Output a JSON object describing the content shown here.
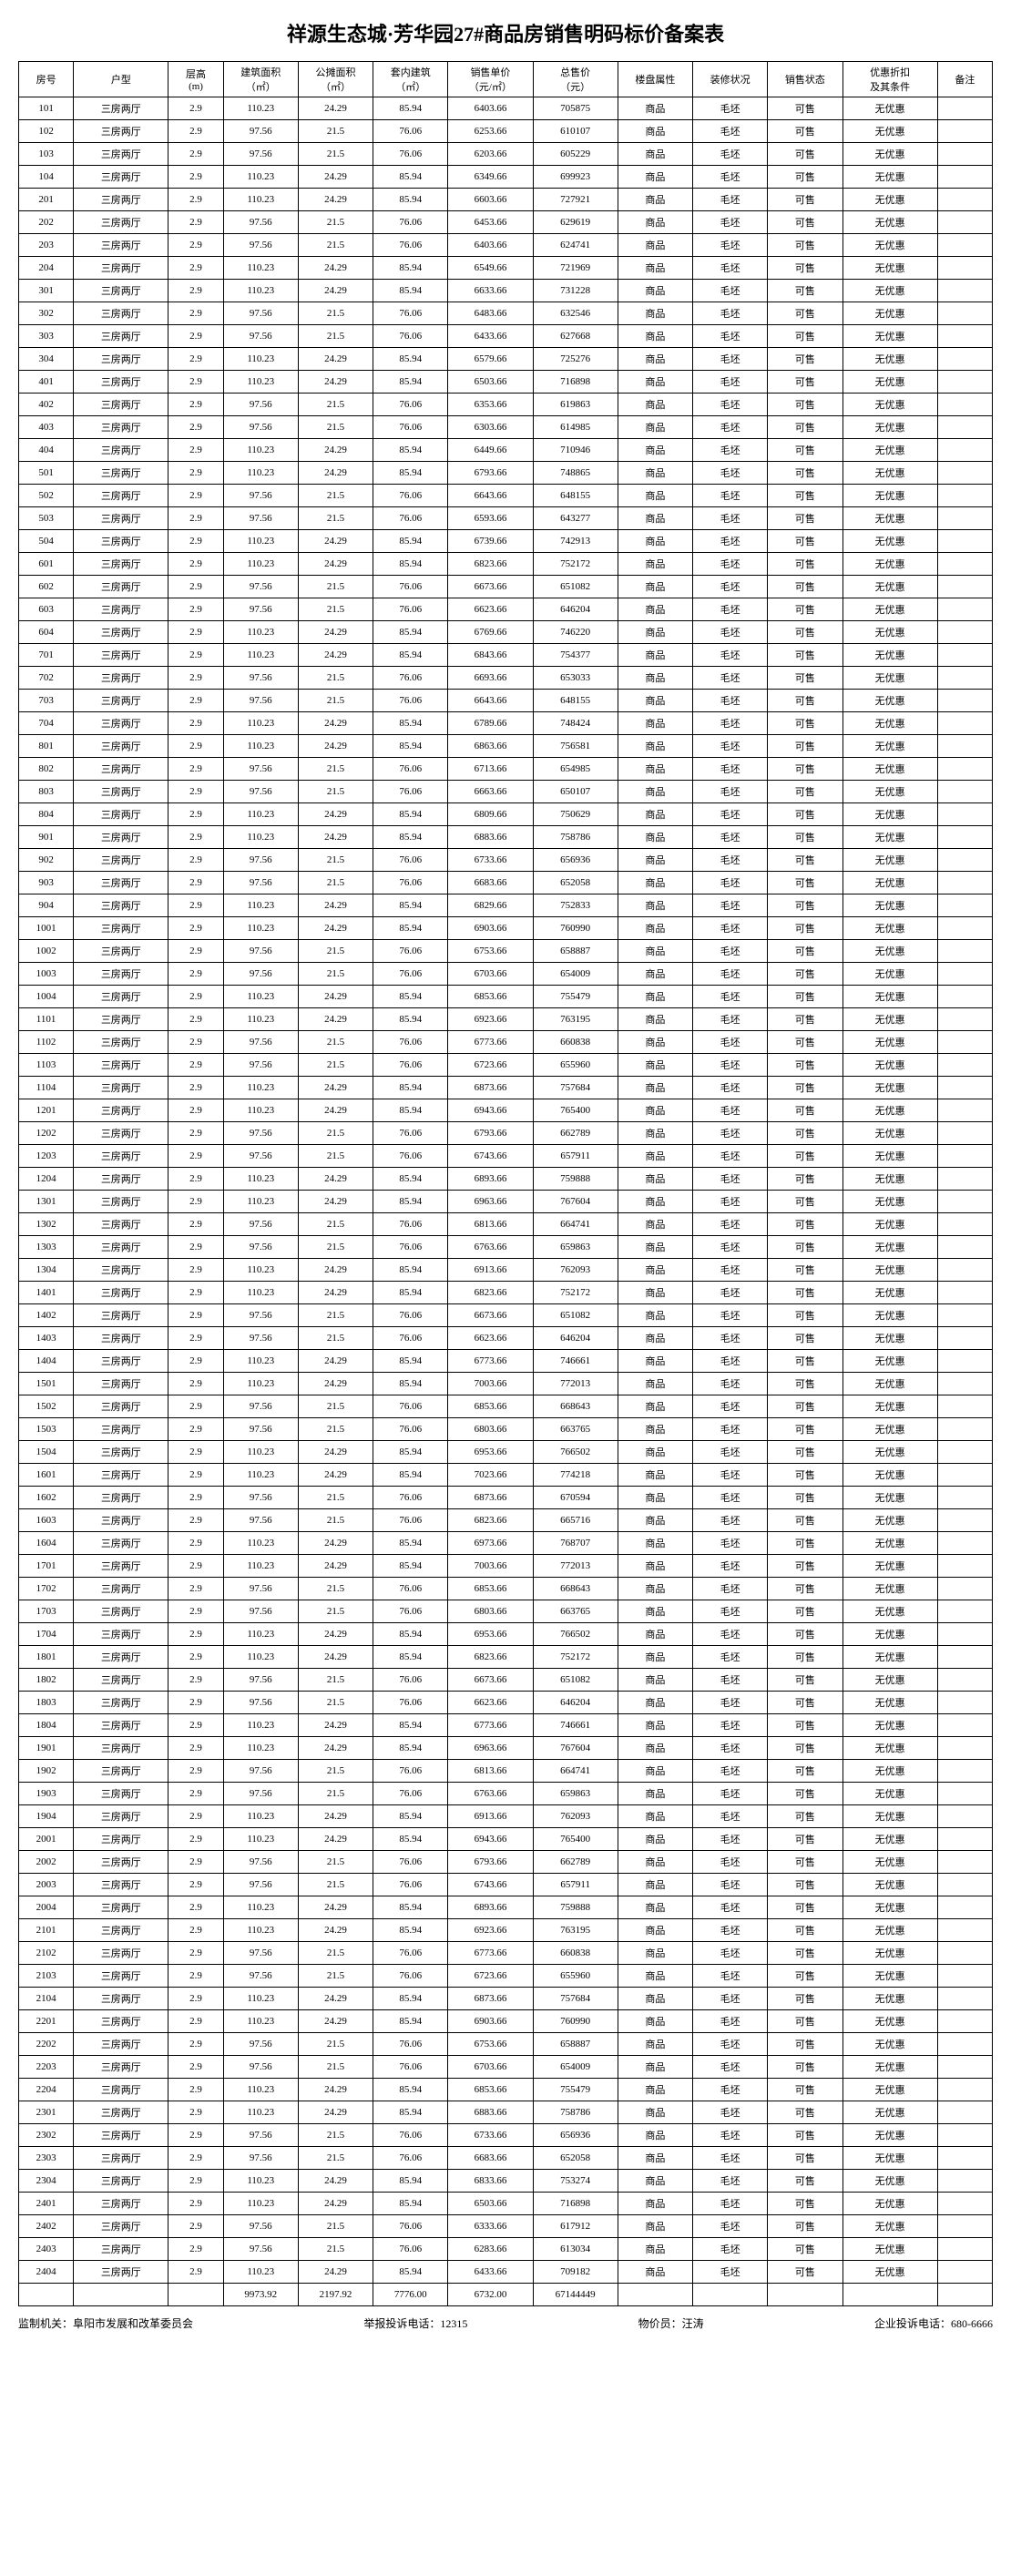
{
  "title": "祥源生态城·芳华园27#商品房销售明码标价备案表",
  "headers": {
    "room_no": "房号",
    "unit_type": "户型",
    "floor_height": "层高\n(m)",
    "build_area": "建筑面积\n（㎡）",
    "shared_area": "公摊面积\n（㎡）",
    "inner_area": "套内建筑\n（㎡）",
    "unit_price": "销售单价\n（元/㎡）",
    "total_price": "总售价\n（元）",
    "prop_attr": "楼盘属性",
    "decoration": "装修状况",
    "sale_status": "销售状态",
    "discount": "优惠折扣\n及其条件",
    "remark": "备注"
  },
  "common": {
    "unit_type": "三房两厅",
    "floor_height": "2.9",
    "build_area_a": "110.23",
    "build_area_b": "97.56",
    "shared_area_a": "24.29",
    "shared_area_b": "21.5",
    "inner_area_a": "85.94",
    "inner_area_b": "76.06",
    "prop_attr": "商品",
    "decoration": "毛坯",
    "sale_status": "可售",
    "discount": "无优惠"
  },
  "rows": [
    {
      "no": "101",
      "t": "a",
      "up": "6403.66",
      "tp": "705875"
    },
    {
      "no": "102",
      "t": "b",
      "up": "6253.66",
      "tp": "610107"
    },
    {
      "no": "103",
      "t": "b",
      "up": "6203.66",
      "tp": "605229"
    },
    {
      "no": "104",
      "t": "a",
      "up": "6349.66",
      "tp": "699923"
    },
    {
      "no": "201",
      "t": "a",
      "up": "6603.66",
      "tp": "727921"
    },
    {
      "no": "202",
      "t": "b",
      "up": "6453.66",
      "tp": "629619"
    },
    {
      "no": "203",
      "t": "b",
      "up": "6403.66",
      "tp": "624741"
    },
    {
      "no": "204",
      "t": "a",
      "up": "6549.66",
      "tp": "721969"
    },
    {
      "no": "301",
      "t": "a",
      "up": "6633.66",
      "tp": "731228"
    },
    {
      "no": "302",
      "t": "b",
      "up": "6483.66",
      "tp": "632546"
    },
    {
      "no": "303",
      "t": "b",
      "up": "6433.66",
      "tp": "627668"
    },
    {
      "no": "304",
      "t": "a",
      "up": "6579.66",
      "tp": "725276"
    },
    {
      "no": "401",
      "t": "a",
      "up": "6503.66",
      "tp": "716898"
    },
    {
      "no": "402",
      "t": "b",
      "up": "6353.66",
      "tp": "619863"
    },
    {
      "no": "403",
      "t": "b",
      "up": "6303.66",
      "tp": "614985"
    },
    {
      "no": "404",
      "t": "a",
      "up": "6449.66",
      "tp": "710946"
    },
    {
      "no": "501",
      "t": "a",
      "up": "6793.66",
      "tp": "748865"
    },
    {
      "no": "502",
      "t": "b",
      "up": "6643.66",
      "tp": "648155"
    },
    {
      "no": "503",
      "t": "b",
      "up": "6593.66",
      "tp": "643277"
    },
    {
      "no": "504",
      "t": "a",
      "up": "6739.66",
      "tp": "742913"
    },
    {
      "no": "601",
      "t": "a",
      "up": "6823.66",
      "tp": "752172"
    },
    {
      "no": "602",
      "t": "b",
      "up": "6673.66",
      "tp": "651082"
    },
    {
      "no": "603",
      "t": "b",
      "up": "6623.66",
      "tp": "646204"
    },
    {
      "no": "604",
      "t": "a",
      "up": "6769.66",
      "tp": "746220"
    },
    {
      "no": "701",
      "t": "a",
      "up": "6843.66",
      "tp": "754377"
    },
    {
      "no": "702",
      "t": "b",
      "up": "6693.66",
      "tp": "653033"
    },
    {
      "no": "703",
      "t": "b",
      "up": "6643.66",
      "tp": "648155"
    },
    {
      "no": "704",
      "t": "a",
      "up": "6789.66",
      "tp": "748424"
    },
    {
      "no": "801",
      "t": "a",
      "up": "6863.66",
      "tp": "756581"
    },
    {
      "no": "802",
      "t": "b",
      "up": "6713.66",
      "tp": "654985"
    },
    {
      "no": "803",
      "t": "b",
      "up": "6663.66",
      "tp": "650107"
    },
    {
      "no": "804",
      "t": "a",
      "up": "6809.66",
      "tp": "750629"
    },
    {
      "no": "901",
      "t": "a",
      "up": "6883.66",
      "tp": "758786"
    },
    {
      "no": "902",
      "t": "b",
      "up": "6733.66",
      "tp": "656936"
    },
    {
      "no": "903",
      "t": "b",
      "up": "6683.66",
      "tp": "652058"
    },
    {
      "no": "904",
      "t": "a",
      "up": "6829.66",
      "tp": "752833"
    },
    {
      "no": "1001",
      "t": "a",
      "up": "6903.66",
      "tp": "760990"
    },
    {
      "no": "1002",
      "t": "b",
      "up": "6753.66",
      "tp": "658887"
    },
    {
      "no": "1003",
      "t": "b",
      "up": "6703.66",
      "tp": "654009"
    },
    {
      "no": "1004",
      "t": "a",
      "up": "6853.66",
      "tp": "755479"
    },
    {
      "no": "1101",
      "t": "a",
      "up": "6923.66",
      "tp": "763195"
    },
    {
      "no": "1102",
      "t": "b",
      "up": "6773.66",
      "tp": "660838"
    },
    {
      "no": "1103",
      "t": "b",
      "up": "6723.66",
      "tp": "655960"
    },
    {
      "no": "1104",
      "t": "a",
      "up": "6873.66",
      "tp": "757684"
    },
    {
      "no": "1201",
      "t": "a",
      "up": "6943.66",
      "tp": "765400"
    },
    {
      "no": "1202",
      "t": "b",
      "up": "6793.66",
      "tp": "662789"
    },
    {
      "no": "1203",
      "t": "b",
      "up": "6743.66",
      "tp": "657911"
    },
    {
      "no": "1204",
      "t": "a",
      "up": "6893.66",
      "tp": "759888"
    },
    {
      "no": "1301",
      "t": "a",
      "up": "6963.66",
      "tp": "767604"
    },
    {
      "no": "1302",
      "t": "b",
      "up": "6813.66",
      "tp": "664741"
    },
    {
      "no": "1303",
      "t": "b",
      "up": "6763.66",
      "tp": "659863"
    },
    {
      "no": "1304",
      "t": "a",
      "up": "6913.66",
      "tp": "762093"
    },
    {
      "no": "1401",
      "t": "a",
      "up": "6823.66",
      "tp": "752172"
    },
    {
      "no": "1402",
      "t": "b",
      "up": "6673.66",
      "tp": "651082"
    },
    {
      "no": "1403",
      "t": "b",
      "up": "6623.66",
      "tp": "646204"
    },
    {
      "no": "1404",
      "t": "a",
      "up": "6773.66",
      "tp": "746661"
    },
    {
      "no": "1501",
      "t": "a",
      "up": "7003.66",
      "tp": "772013"
    },
    {
      "no": "1502",
      "t": "b",
      "up": "6853.66",
      "tp": "668643"
    },
    {
      "no": "1503",
      "t": "b",
      "up": "6803.66",
      "tp": "663765"
    },
    {
      "no": "1504",
      "t": "a",
      "up": "6953.66",
      "tp": "766502"
    },
    {
      "no": "1601",
      "t": "a",
      "up": "7023.66",
      "tp": "774218"
    },
    {
      "no": "1602",
      "t": "b",
      "up": "6873.66",
      "tp": "670594"
    },
    {
      "no": "1603",
      "t": "b",
      "up": "6823.66",
      "tp": "665716"
    },
    {
      "no": "1604",
      "t": "a",
      "up": "6973.66",
      "tp": "768707"
    },
    {
      "no": "1701",
      "t": "a",
      "up": "7003.66",
      "tp": "772013"
    },
    {
      "no": "1702",
      "t": "b",
      "up": "6853.66",
      "tp": "668643"
    },
    {
      "no": "1703",
      "t": "b",
      "up": "6803.66",
      "tp": "663765"
    },
    {
      "no": "1704",
      "t": "a",
      "up": "6953.66",
      "tp": "766502"
    },
    {
      "no": "1801",
      "t": "a",
      "up": "6823.66",
      "tp": "752172"
    },
    {
      "no": "1802",
      "t": "b",
      "up": "6673.66",
      "tp": "651082"
    },
    {
      "no": "1803",
      "t": "b",
      "up": "6623.66",
      "tp": "646204"
    },
    {
      "no": "1804",
      "t": "a",
      "up": "6773.66",
      "tp": "746661"
    },
    {
      "no": "1901",
      "t": "a",
      "up": "6963.66",
      "tp": "767604"
    },
    {
      "no": "1902",
      "t": "b",
      "up": "6813.66",
      "tp": "664741"
    },
    {
      "no": "1903",
      "t": "b",
      "up": "6763.66",
      "tp": "659863"
    },
    {
      "no": "1904",
      "t": "a",
      "up": "6913.66",
      "tp": "762093"
    },
    {
      "no": "2001",
      "t": "a",
      "up": "6943.66",
      "tp": "765400"
    },
    {
      "no": "2002",
      "t": "b",
      "up": "6793.66",
      "tp": "662789"
    },
    {
      "no": "2003",
      "t": "b",
      "up": "6743.66",
      "tp": "657911"
    },
    {
      "no": "2004",
      "t": "a",
      "up": "6893.66",
      "tp": "759888"
    },
    {
      "no": "2101",
      "t": "a",
      "up": "6923.66",
      "tp": "763195"
    },
    {
      "no": "2102",
      "t": "b",
      "up": "6773.66",
      "tp": "660838"
    },
    {
      "no": "2103",
      "t": "b",
      "up": "6723.66",
      "tp": "655960"
    },
    {
      "no": "2104",
      "t": "a",
      "up": "6873.66",
      "tp": "757684"
    },
    {
      "no": "2201",
      "t": "a",
      "up": "6903.66",
      "tp": "760990"
    },
    {
      "no": "2202",
      "t": "b",
      "up": "6753.66",
      "tp": "658887"
    },
    {
      "no": "2203",
      "t": "b",
      "up": "6703.66",
      "tp": "654009"
    },
    {
      "no": "2204",
      "t": "a",
      "up": "6853.66",
      "tp": "755479"
    },
    {
      "no": "2301",
      "t": "a",
      "up": "6883.66",
      "tp": "758786"
    },
    {
      "no": "2302",
      "t": "b",
      "up": "6733.66",
      "tp": "656936"
    },
    {
      "no": "2303",
      "t": "b",
      "up": "6683.66",
      "tp": "652058"
    },
    {
      "no": "2304",
      "t": "a",
      "up": "6833.66",
      "tp": "753274"
    },
    {
      "no": "2401",
      "t": "a",
      "up": "6503.66",
      "tp": "716898"
    },
    {
      "no": "2402",
      "t": "b",
      "up": "6333.66",
      "tp": "617912"
    },
    {
      "no": "2403",
      "t": "b",
      "up": "6283.66",
      "tp": "613034"
    },
    {
      "no": "2404",
      "t": "a",
      "up": "6433.66",
      "tp": "709182"
    }
  ],
  "totals": {
    "build_area": "9973.92",
    "shared_area": "2197.92",
    "inner_area": "7776.00",
    "unit_price": "6732.00",
    "total_price": "67144449"
  },
  "footer": {
    "supervisor": "监制机关：阜阳市发展和改革委员会",
    "hotline": "举报投诉电话：12315",
    "pricer": "物价员：汪涛",
    "company_tel": "企业投诉电话：680-6666"
  }
}
